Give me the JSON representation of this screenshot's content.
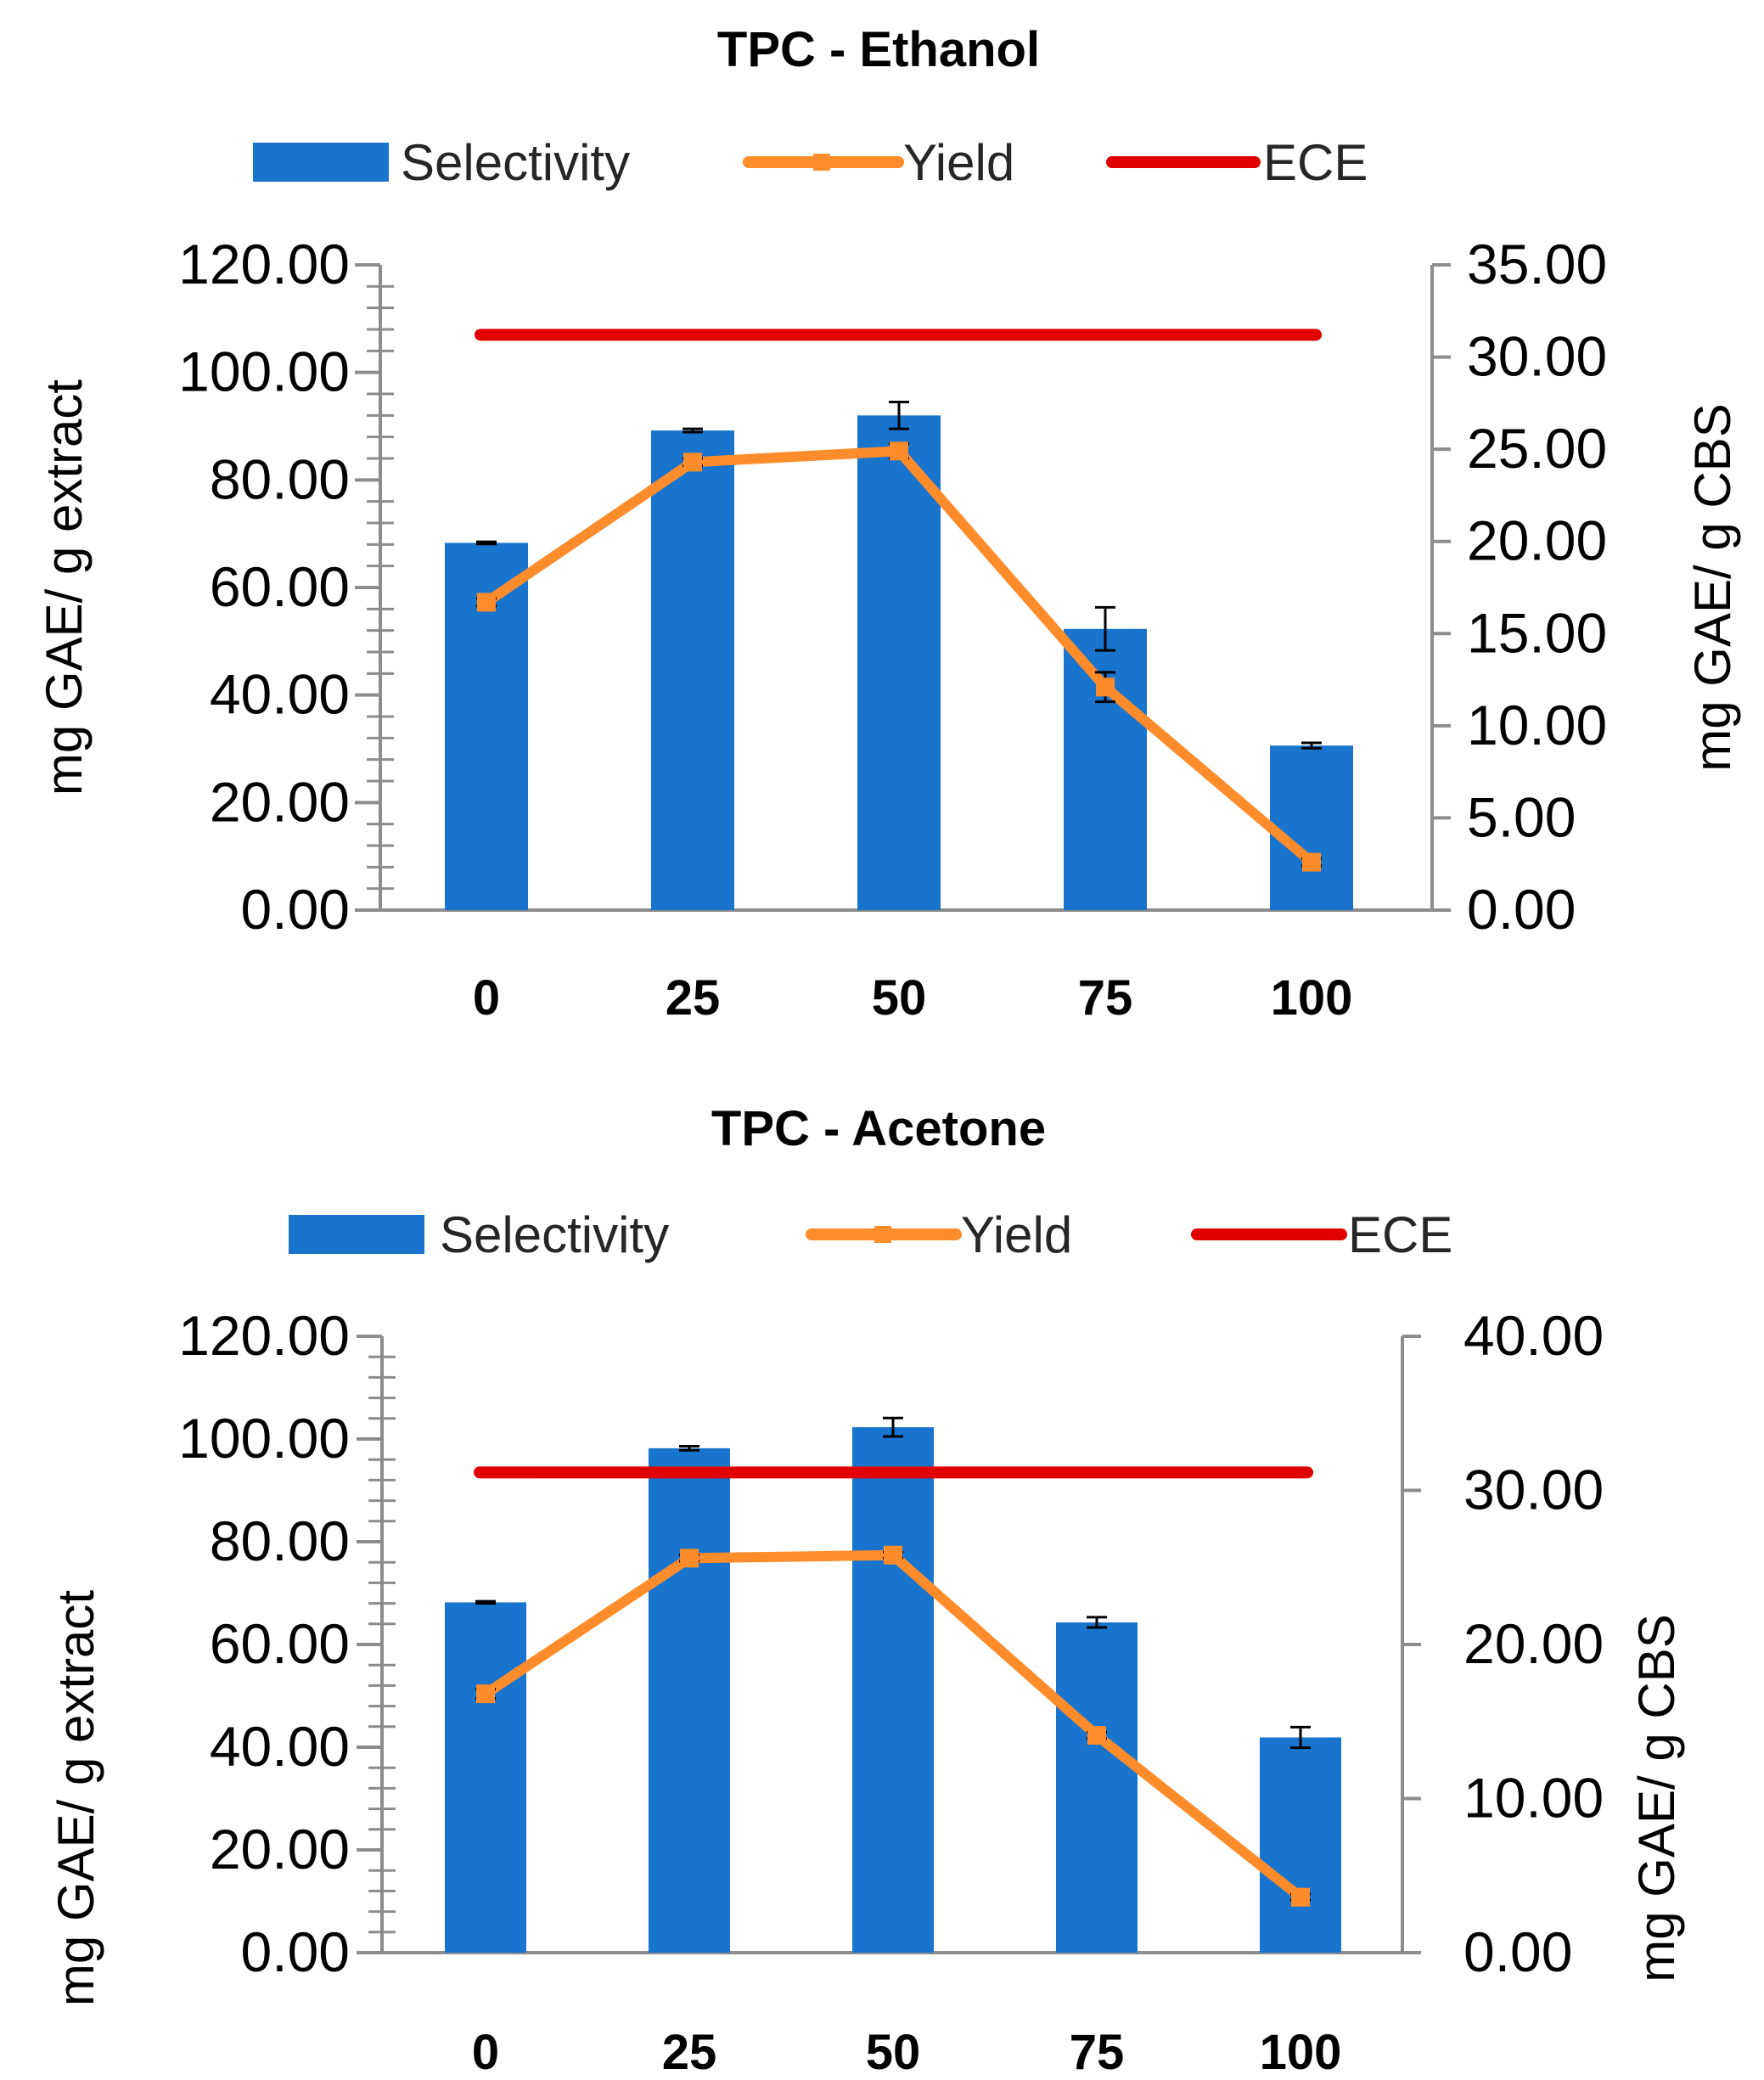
{
  "chart_data": [
    {
      "type": "bar",
      "title": "TPC - Ethanol",
      "categories": [
        "0",
        "25",
        "50",
        "75",
        "100"
      ],
      "ylabel": "mg GAE/ g extract",
      "y2label": "mg GAE/ g CBS",
      "ylim": [
        0,
        120
      ],
      "y2lim": [
        0,
        35
      ],
      "yticks": [
        "0.00",
        "20.00",
        "40.00",
        "60.00",
        "80.00",
        "100.00",
        "120.00"
      ],
      "y2ticks": [
        "0.00",
        "5.00",
        "10.00",
        "15.00",
        "20.00",
        "25.00",
        "30.00",
        "35.00"
      ],
      "legend": [
        "Selectivity",
        "Yield",
        "ECE"
      ],
      "series": [
        {
          "name": "Selectivity",
          "kind": "bar",
          "axis": "left",
          "color": "#1874CD",
          "values": [
            68.3,
            89.2,
            92.0,
            52.3,
            30.6
          ],
          "errors": [
            0.2,
            0.3,
            2.5,
            4.0,
            0.5
          ]
        },
        {
          "name": "Yield",
          "kind": "line",
          "axis": "right",
          "color": "#FF8C2A",
          "values": [
            16.7,
            24.3,
            24.9,
            12.1,
            2.6
          ],
          "errors": [
            0.2,
            0.2,
            0.4,
            0.8,
            0.2
          ]
        },
        {
          "name": "ECE",
          "kind": "hline",
          "axis": "left",
          "color": "#E00000",
          "value": 107.0
        }
      ]
    },
    {
      "type": "bar",
      "title": "TPC - Acetone",
      "categories": [
        "0",
        "25",
        "50",
        "75",
        "100"
      ],
      "ylabel": "mg GAE/ g extract",
      "y2label": "mg GAE/ g CBS",
      "ylim": [
        0,
        120
      ],
      "y2lim": [
        0,
        40
      ],
      "yticks": [
        "0.00",
        "20.00",
        "40.00",
        "60.00",
        "80.00",
        "100.00",
        "120.00"
      ],
      "y2ticks": [
        "0.00",
        "10.00",
        "20.00",
        "30.00",
        "40.00"
      ],
      "legend": [
        "Selectivity",
        "Yield",
        "ECE"
      ],
      "series": [
        {
          "name": "Selectivity",
          "kind": "bar",
          "axis": "left",
          "color": "#1874CD",
          "values": [
            68.2,
            98.2,
            102.3,
            64.3,
            41.9
          ],
          "errors": [
            0.2,
            0.4,
            1.8,
            1.0,
            2.0
          ]
        },
        {
          "name": "Yield",
          "kind": "line",
          "axis": "right",
          "color": "#FF8C2A",
          "values": [
            16.8,
            25.6,
            25.8,
            14.1,
            3.6
          ],
          "errors": [
            0.3,
            0.2,
            0.2,
            0.2,
            0.2
          ]
        },
        {
          "name": "ECE",
          "kind": "hline",
          "axis": "left",
          "color": "#E00000",
          "value": 93.5
        }
      ]
    }
  ]
}
